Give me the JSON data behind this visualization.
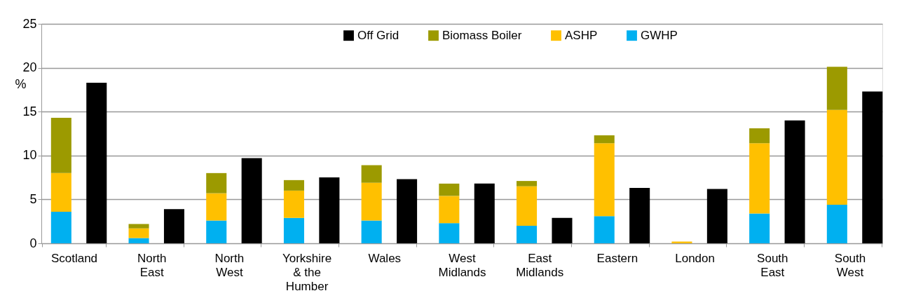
{
  "chart_data": {
    "type": "bar",
    "ylabel": "%",
    "categories": [
      "Scotland",
      "North\nEast",
      "North\nWest",
      "Yorkshire\n& the\nHumber",
      "Wales",
      "West\nMidlands",
      "East\nMidlands",
      "Eastern",
      "London",
      "South\nEast",
      "South\nWest"
    ],
    "series": [
      {
        "name": "GWHP",
        "color": "#00b0f0",
        "base": [
          0,
          0,
          0,
          0,
          0,
          0,
          0,
          0,
          null,
          0,
          0
        ],
        "values": [
          3.6,
          0.6,
          2.6,
          2.9,
          2.6,
          2.3,
          2.0,
          3.1,
          null,
          3.4,
          4.4
        ]
      },
      {
        "name": "ASHP",
        "color": "#ffc000",
        "base": [
          3.6,
          0.6,
          2.6,
          2.9,
          2.6,
          2.3,
          2.0,
          3.1,
          0,
          3.4,
          4.4
        ],
        "values": [
          4.4,
          1.1,
          3.1,
          3.1,
          4.3,
          3.1,
          4.5,
          8.3,
          0.2,
          8.0,
          10.8
        ]
      },
      {
        "name": "Biomass Boiler",
        "color": "#9c9a00",
        "base": [
          8.0,
          1.7,
          5.7,
          6.0,
          6.9,
          5.4,
          6.5,
          11.4,
          null,
          11.4,
          15.2
        ],
        "values": [
          6.3,
          0.5,
          2.3,
          1.2,
          2.0,
          1.4,
          0.6,
          0.9,
          null,
          1.7,
          4.9
        ]
      },
      {
        "name": "Off Grid",
        "color": "#000000",
        "values": [
          18.3,
          3.9,
          9.7,
          7.5,
          7.3,
          6.8,
          2.9,
          6.3,
          6.2,
          14.0,
          17.3
        ]
      }
    ],
    "ylim": [
      0,
      25
    ],
    "yticks": [
      0,
      5,
      10,
      15,
      20,
      25
    ],
    "grid": "y",
    "legend": "top"
  }
}
